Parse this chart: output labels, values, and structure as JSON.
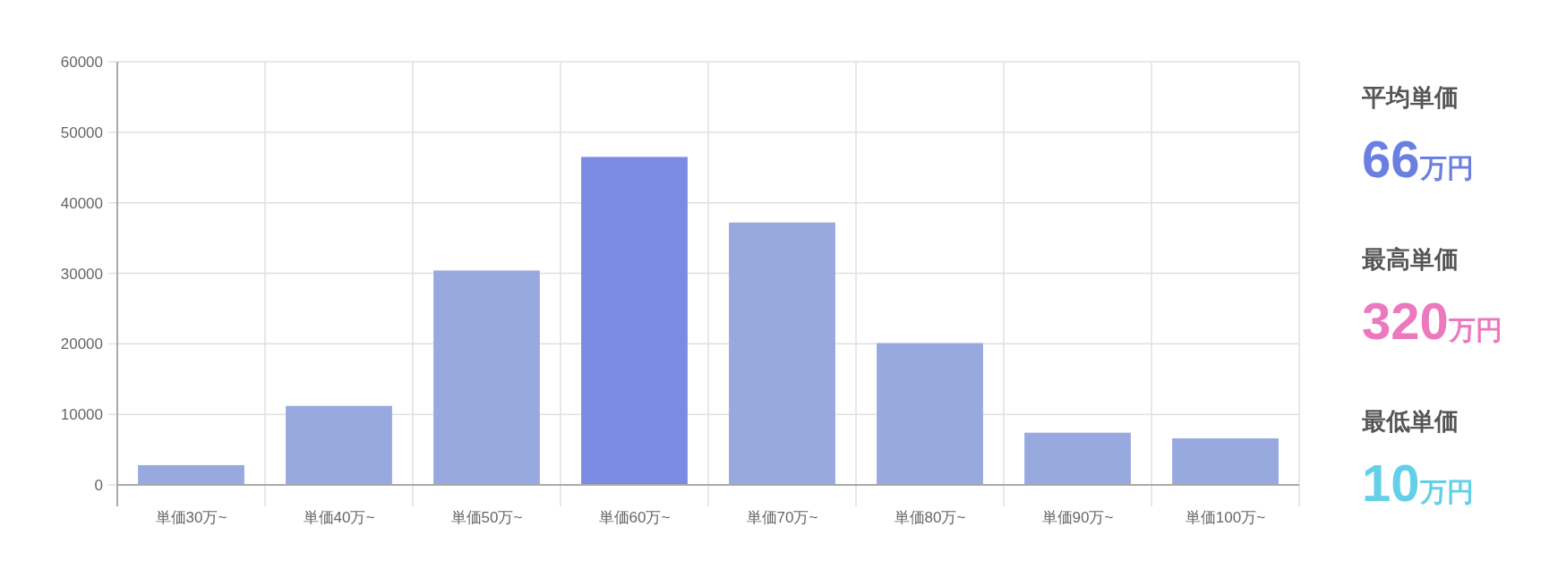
{
  "chart_data": [
    {
      "type": "bar",
      "categories": [
        "単価30万~",
        "単価40万~",
        "単価50万~",
        "単価60万~",
        "単価70万~",
        "単価80万~",
        "単価90万~",
        "単価100万~"
      ],
      "values": [
        2800,
        11200,
        30400,
        46500,
        37200,
        20100,
        7400,
        6600
      ],
      "colors": [
        "#98a9df",
        "#98a9df",
        "#98a9df",
        "#7b8ae2",
        "#98a9df",
        "#98a9df",
        "#98a9df",
        "#98a9df"
      ],
      "ylim": [
        0,
        60000
      ],
      "yticks": [
        0,
        10000,
        20000,
        30000,
        40000,
        50000,
        60000
      ],
      "grid": true
    },
    {
      "type": "other",
      "annotations": [
        "平均単価",
        "66万円",
        "最高単価",
        "320万円",
        "最低単価",
        "10万円"
      ],
      "colors": [
        "#6b7fe0",
        "#ec78bd",
        "#63d0e8"
      ]
    }
  ]
}
